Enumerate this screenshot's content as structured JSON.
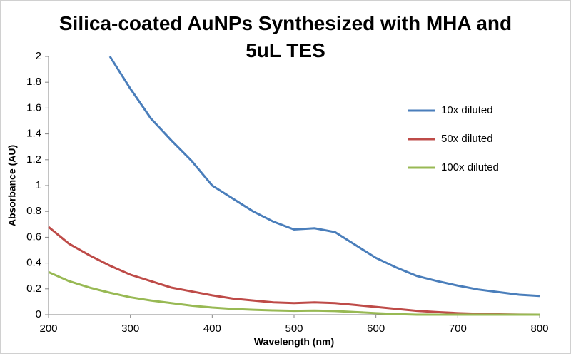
{
  "chart_data": {
    "type": "line",
    "title": "Silica-coated AuNPs Synthesized with MHA and 5uL TES",
    "x_label": "Wavelength (nm)",
    "y_label": "Absorbance (AU)",
    "x": [
      200,
      225,
      250,
      275,
      300,
      325,
      350,
      375,
      400,
      425,
      450,
      475,
      500,
      525,
      550,
      575,
      600,
      625,
      650,
      675,
      700,
      725,
      750,
      775,
      800
    ],
    "series": [
      {
        "name": "10x diluted",
        "color": "#4a7ebb",
        "values": [
          null,
          null,
          null,
          2.0,
          1.75,
          1.52,
          1.35,
          1.19,
          1.0,
          0.9,
          0.8,
          0.72,
          0.66,
          0.67,
          0.64,
          0.54,
          0.44,
          0.365,
          0.3,
          0.26,
          0.225,
          0.195,
          0.175,
          0.155,
          0.145
        ]
      },
      {
        "name": "50x diluted",
        "color": "#be4b48",
        "values": [
          0.68,
          0.55,
          0.46,
          0.38,
          0.31,
          0.26,
          0.21,
          0.18,
          0.15,
          0.125,
          0.11,
          0.095,
          0.09,
          0.095,
          0.09,
          0.075,
          0.06,
          0.045,
          0.03,
          0.02,
          0.012,
          0.007,
          0.003,
          0.001,
          0
        ]
      },
      {
        "name": "100x diluted",
        "color": "#98b954",
        "values": [
          0.33,
          0.26,
          0.21,
          0.17,
          0.135,
          0.11,
          0.09,
          0.07,
          0.055,
          0.045,
          0.038,
          0.033,
          0.03,
          0.032,
          0.028,
          0.02,
          0.012,
          0.005,
          0,
          0,
          0,
          0,
          0,
          0,
          0
        ]
      }
    ],
    "xlim": [
      200,
      800
    ],
    "xticks": [
      200,
      300,
      400,
      500,
      600,
      700,
      800
    ],
    "ylim": [
      0,
      2
    ],
    "yticks": [
      0,
      0.2,
      0.4,
      0.6,
      0.8,
      1,
      1.2,
      1.4,
      1.6,
      1.8,
      2
    ],
    "grid": false,
    "legend": "right"
  }
}
